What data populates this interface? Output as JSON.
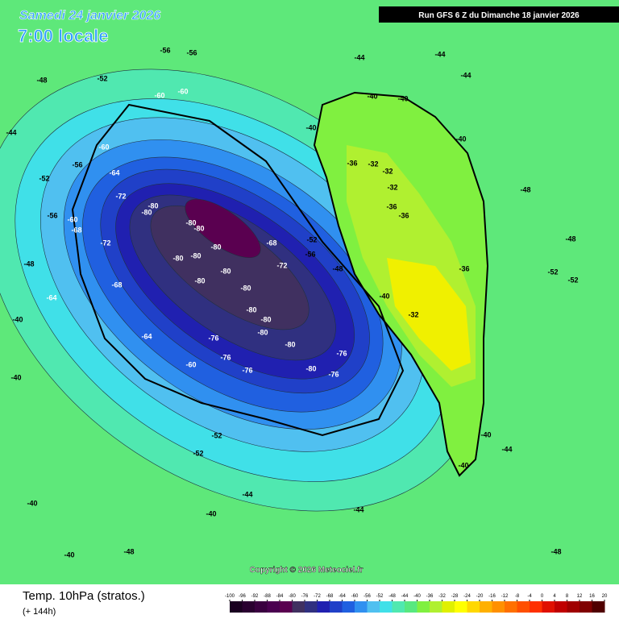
{
  "header": {
    "date": "Samedi 24 janvier 2026",
    "time": "7:00 locale",
    "run": "Run GFS 6 Z du Dimanche 18 janvier 2026"
  },
  "copyright": "Copyright © 2026 Meteociel.fr",
  "footer": {
    "title": "Temp. 10hPa (stratos.)",
    "lead": "(+ 144h)"
  },
  "scale": {
    "ticks": [
      -100,
      -96,
      -92,
      -88,
      -84,
      -80,
      -76,
      -72,
      -68,
      -64,
      -60,
      -56,
      -52,
      -48,
      -44,
      -40,
      -36,
      -32,
      -28,
      -24,
      -20,
      -16,
      -12,
      -8,
      -4,
      0,
      4,
      8,
      12,
      16,
      20
    ],
    "colors": [
      "#1a0020",
      "#2a0030",
      "#3a0040",
      "#4a0050",
      "#5a0050",
      "#403060",
      "#303080",
      "#2020b0",
      "#2040c8",
      "#2060e0",
      "#3090f0",
      "#50c0f0",
      "#40e0e8",
      "#50e8b0",
      "#58e880",
      "#80f040",
      "#b0f030",
      "#e0f000",
      "#ffff00",
      "#ffd800",
      "#ffb000",
      "#ff9000",
      "#ff7000",
      "#ff5000",
      "#ff3000",
      "#e01000",
      "#c00000",
      "#a00000",
      "#800000",
      "#500000"
    ]
  },
  "contour_labels": [
    -80,
    -80,
    -80,
    -80,
    -80,
    -80,
    -80,
    -80,
    -80,
    -80,
    -80,
    -80,
    -80,
    -80,
    -80,
    -72,
    -72,
    -72,
    -76,
    -76,
    -76,
    -76,
    -76,
    -68,
    -68,
    -68,
    -64,
    -64,
    -64,
    -60,
    -60,
    -60,
    -60,
    -60,
    -56,
    -56,
    -56,
    -56,
    -56,
    -52,
    -52,
    -52,
    -52,
    -52,
    -44,
    -44,
    -44,
    -48,
    -48,
    -52,
    -52,
    -40,
    -40,
    -40,
    -40,
    -36,
    -32,
    -32,
    -32,
    -36,
    -36,
    -36,
    -32,
    -40,
    -48,
    -40,
    -40,
    -44,
    -40,
    -40,
    -44,
    -48,
    -40,
    -40,
    -40,
    -44,
    -48,
    -48,
    -44,
    -48
  ]
}
